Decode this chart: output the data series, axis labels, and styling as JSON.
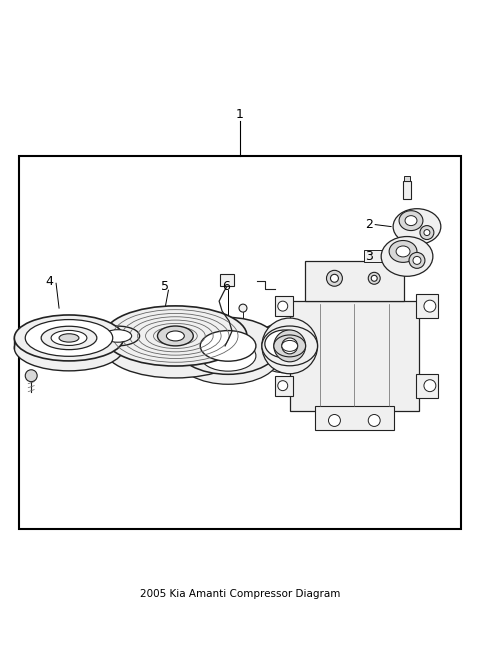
{
  "title": "2005 Kia Amanti Compressor Diagram",
  "bg_color": "#ffffff",
  "box_color": "#000000",
  "text_color": "#000000",
  "fig_width": 4.8,
  "fig_height": 6.56,
  "dpi": 100,
  "lc": "#222222",
  "gray": "#666666",
  "light_fill": "#f0f0f0",
  "mid_fill": "#d8d8d8",
  "dark_fill": "#aaaaaa"
}
